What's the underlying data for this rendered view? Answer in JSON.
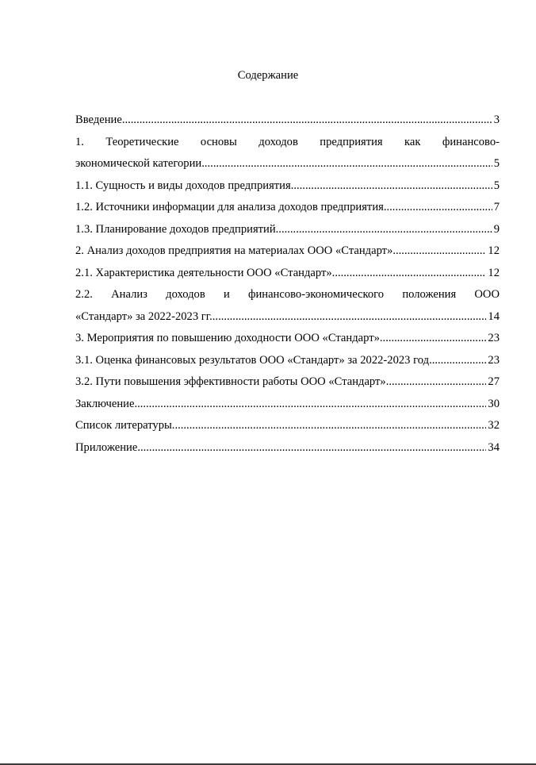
{
  "title": "Содержание",
  "entries": [
    {
      "text": "Введение",
      "page": "3"
    },
    {
      "line1": "1. Теоретические основы доходов предприятия как финансово-",
      "text": "экономической категории",
      "page": "5"
    },
    {
      "text": "1.1. Сущность и виды доходов предприятия",
      "page": "5"
    },
    {
      "text": "1.2. Источники информации для анализа доходов предприятия",
      "page": "7"
    },
    {
      "text": "1.3. Планирование доходов предприятий",
      "page": "9"
    },
    {
      "text": "2. Анализ доходов предприятия на материалах ООО «Стандарт»",
      "page": "12"
    },
    {
      "text": "2.1. Характеристика деятельности ООО «Стандарт»",
      "page": "12"
    },
    {
      "line1": "2.2. Анализ доходов и финансово-экономического положения ООО",
      "text": "«Стандарт» за 2022-2023 гг.",
      "page": "14"
    },
    {
      "text": "3. Мероприятия по повышению доходности ООО «Стандарт»",
      "page": "23"
    },
    {
      "text": "3.1. Оценка финансовых результатов ООО «Стандарт» за 2022-2023 год",
      "page": "23"
    },
    {
      "text": "3.2. Пути повышения эффективности работы ООО «Стандарт»",
      "page": "27"
    },
    {
      "text": "Заключение",
      "page": "30"
    },
    {
      "text": "Список литературы",
      "page": "32"
    },
    {
      "text": "Приложение",
      "page": "34"
    }
  ]
}
